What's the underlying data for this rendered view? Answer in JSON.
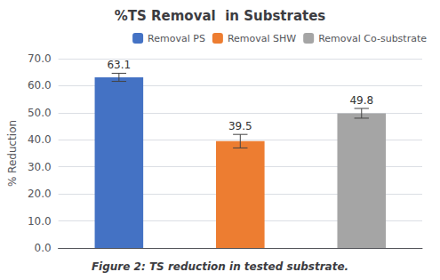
{
  "chart_data": {
    "type": "bar",
    "title": "%TS Removal  in Substrates",
    "ylabel": "% Reduction",
    "caption": "Figure 2: TS reduction in tested substrate.",
    "categories": [
      "Removal PS",
      "Removal SHW",
      "Removal Co-substrate"
    ],
    "values": [
      63.1,
      39.5,
      49.8
    ],
    "errors": [
      1.5,
      2.5,
      1.8
    ],
    "colors": [
      "#4472C4",
      "#ED7D31",
      "#A5A5A5"
    ],
    "ylim": [
      0,
      70
    ],
    "yticks": [
      {
        "value": 0,
        "label": "0.0"
      },
      {
        "value": 10,
        "label": "10.0"
      },
      {
        "value": 20,
        "label": "20.0"
      },
      {
        "value": 30,
        "label": "30.0"
      },
      {
        "value": 40,
        "label": "40.0"
      },
      {
        "value": 50,
        "label": "50.0"
      },
      {
        "value": 60,
        "label": "60.0"
      },
      {
        "value": 70,
        "label": "70.0"
      }
    ],
    "grid": true,
    "legend": "upper right",
    "data_labels": true,
    "tick_labels": "y"
  }
}
